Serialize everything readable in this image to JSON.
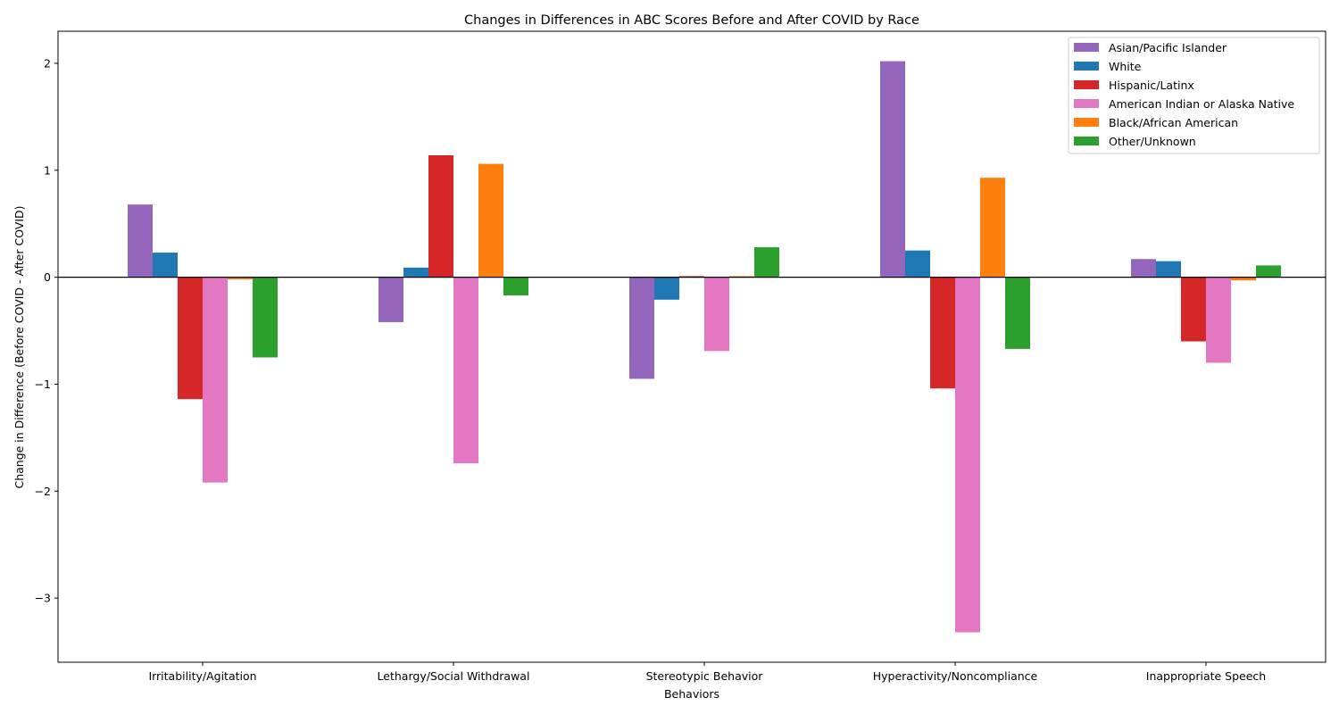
{
  "chart_data": {
    "type": "bar",
    "title": "Changes in Differences in ABC Scores Before and After COVID by Race",
    "xlabel": "Behaviors",
    "ylabel": "Change in Difference (Before COVID - After COVID)",
    "categories": [
      "Irritability/Agitation",
      "Lethargy/Social Withdrawal",
      "Stereotypic Behavior",
      "Hyperactivity/Noncompliance",
      "Inappropriate Speech"
    ],
    "series": [
      {
        "name": "Asian/Pacific Islander",
        "color": "#9467bd",
        "values": [
          0.68,
          -0.42,
          -0.95,
          2.02,
          0.17
        ]
      },
      {
        "name": "White",
        "color": "#1f77b4",
        "values": [
          0.23,
          0.09,
          -0.21,
          0.25,
          0.15
        ]
      },
      {
        "name": "Hispanic/Latinx",
        "color": "#d62728",
        "values": [
          -1.14,
          1.14,
          0.01,
          -1.04,
          -0.6
        ]
      },
      {
        "name": "American Indian or Alaska Native",
        "color": "#e377c2",
        "values": [
          -1.92,
          -1.74,
          -0.69,
          -3.32,
          -0.8
        ]
      },
      {
        "name": "Black/African American",
        "color": "#ff7f0e",
        "values": [
          -0.02,
          1.06,
          0.01,
          0.93,
          -0.03
        ]
      },
      {
        "name": "Other/Unknown",
        "color": "#2ca02c",
        "values": [
          -0.75,
          -0.17,
          0.28,
          -0.67,
          0.11
        ]
      }
    ],
    "ylim": [
      -3.6,
      2.3
    ],
    "yticks": [
      -3,
      -2,
      -1,
      0,
      1,
      2
    ],
    "ytick_labels": [
      "−3",
      "−2",
      "−1",
      "0",
      "1",
      "2"
    ],
    "zero_line": true,
    "grid": false,
    "legend_position": "top-right"
  }
}
